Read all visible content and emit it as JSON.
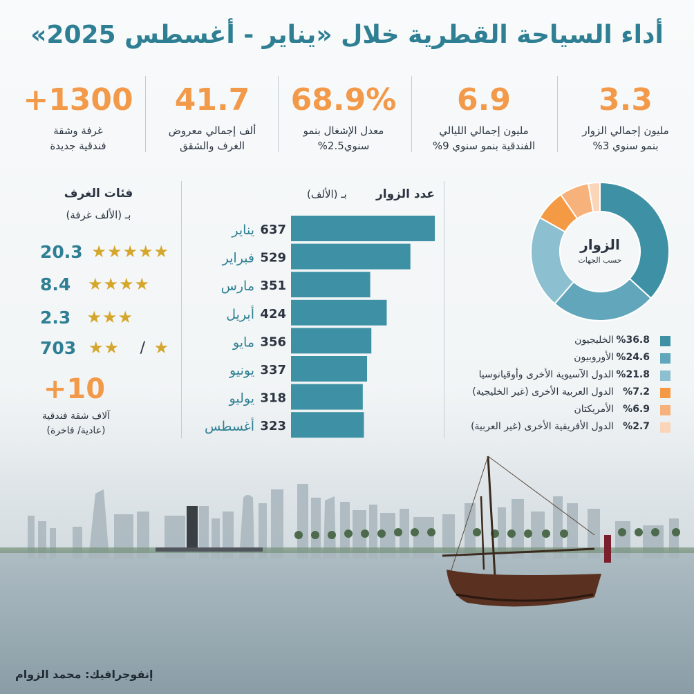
{
  "title": "أداء السياحة القطرية خلال «يناير - أغسطس 2025»",
  "stats": [
    {
      "value": "3.3",
      "label_1": "مليون إجمالي الزوار",
      "label_2": "بنمو سنوي 3%"
    },
    {
      "value": "6.9",
      "label_1": "مليون إجمالي الليالي",
      "label_2": "الفندقية بنمو سنوي 9%"
    },
    {
      "value": "68.9%",
      "label_1": "معدل الإشغال بنمو",
      "label_2": "سنوي2.5%"
    },
    {
      "value": "41.7",
      "label_1": "ألف إجمالي معروض",
      "label_2": "الغرف والشقق"
    },
    {
      "value": "+1300",
      "label_1": "غرفة وشقة",
      "label_2": "فندقية جديدة"
    }
  ],
  "room_categories": {
    "title": "فئات الغرف",
    "subtitle": "بـ (الألف غرفة)",
    "rows": [
      {
        "value": "20.3",
        "stars": "★★★★★"
      },
      {
        "value": "8.4",
        "stars": "★★★★"
      },
      {
        "value": "2.3",
        "stars": "★★★"
      },
      {
        "value": "703",
        "stars": "★★",
        "slash": "/",
        "extra_star": "★"
      }
    ],
    "apartments_value": "+10",
    "apartments_label_1": "آلاف شقة فندقية",
    "apartments_label_2": "(عادية/ فاخرة)"
  },
  "chart_data": [
    {
      "type": "bar",
      "title": "عدد الزوار",
      "subtitle": "بـ (الألف)",
      "orientation": "horizontal",
      "categories": [
        "يناير",
        "فبراير",
        "مارس",
        "أبريل",
        "مايو",
        "يونيو",
        "يوليو",
        "أغسطس"
      ],
      "values": [
        637,
        529,
        351,
        424,
        356,
        337,
        318,
        323
      ],
      "xlim": [
        0,
        637
      ],
      "color": "#3e91a5"
    },
    {
      "type": "pie",
      "title": "الزوار",
      "subtitle": "حسب الجهات",
      "donut": true,
      "labels": [
        "الخليجيون",
        "الأوروبيون",
        "الدول الآسيوية الأخرى وأوقيانوسيا",
        "الدول العربية الأخرى (غير الخليجية)",
        "الأمريكتان",
        "الدول الأفريقية الأخرى (غير العربية)"
      ],
      "values": [
        36.8,
        24.6,
        21.8,
        7.2,
        6.9,
        2.7
      ],
      "value_labels": [
        "%36.8",
        "%24.6",
        "%21.8",
        "%7.2",
        "%6.9",
        "%2.7"
      ],
      "colors": [
        "#3e91a5",
        "#61a6bb",
        "#8cbfd0",
        "#f49a45",
        "#f7b27b",
        "#fbd5b8"
      ]
    }
  ],
  "credit": "إنفوجرافيك: محمد الزوام"
}
